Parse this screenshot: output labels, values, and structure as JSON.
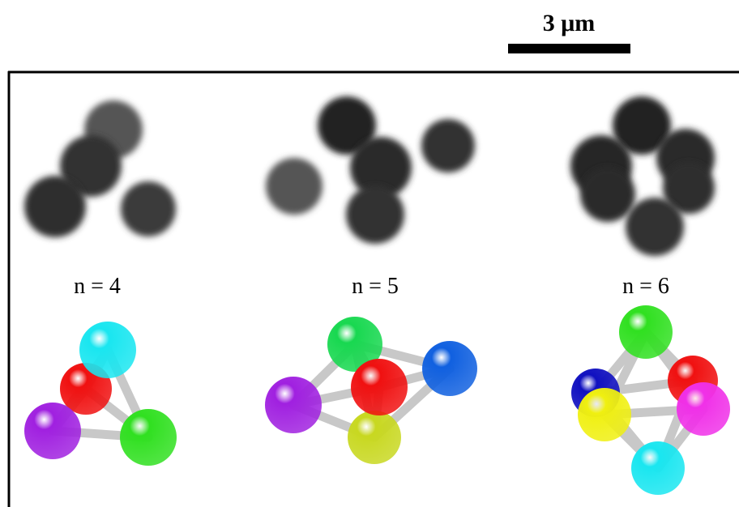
{
  "scale_bar": {
    "label": "3 μm"
  },
  "panels": [
    {
      "label": "n = 4"
    },
    {
      "label": "n = 5"
    },
    {
      "label": "n = 6"
    }
  ]
}
